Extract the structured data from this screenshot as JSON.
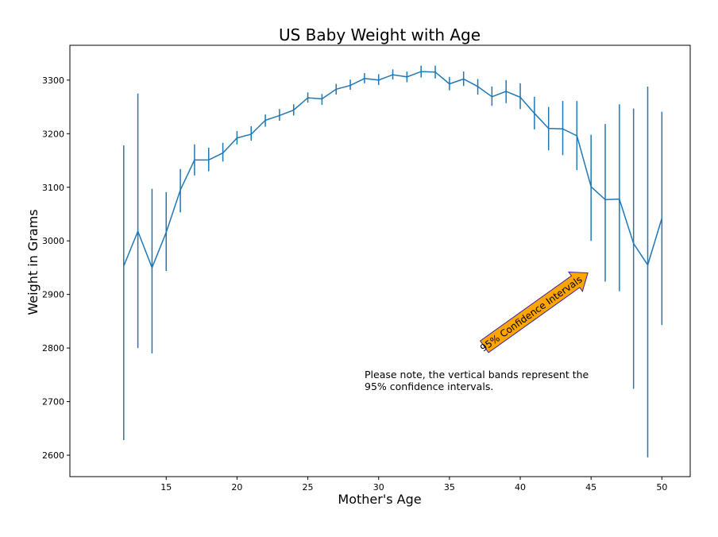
{
  "chart_data": {
    "type": "line",
    "title": "US Baby Weight with Age",
    "xlabel": "Mother's Age",
    "ylabel": "Weight in Grams",
    "xlim": [
      8.2,
      52
    ],
    "ylim": [
      2560,
      3365
    ],
    "xticks": [
      15,
      20,
      25,
      30,
      35,
      40,
      45,
      50
    ],
    "yticks": [
      2600,
      2700,
      2800,
      2900,
      3000,
      3100,
      3200,
      3300
    ],
    "grid": false,
    "color": "#1f77b4",
    "series": [
      {
        "x": [
          12,
          13,
          14,
          15,
          16,
          17,
          18,
          19,
          20,
          21,
          22,
          23,
          24,
          25,
          26,
          27,
          28,
          29,
          30,
          31,
          32,
          33,
          34,
          35,
          36,
          37,
          38,
          39,
          40,
          41,
          42,
          43,
          44,
          45,
          46,
          47,
          48,
          49,
          50
        ],
        "y": [
          2953,
          3018,
          2950,
          3016,
          3095,
          3151,
          3151,
          3164,
          3192,
          3199,
          3225,
          3234,
          3244,
          3267,
          3265,
          3283,
          3290,
          3303,
          3300,
          3310,
          3306,
          3316,
          3315,
          3293,
          3302,
          3288,
          3269,
          3279,
          3268,
          3238,
          3210,
          3209,
          3196,
          3101,
          3077,
          3078,
          2995,
          2955,
          3042
        ],
        "lower": [
          2628,
          2800,
          2790,
          2944,
          3053,
          3122,
          3130,
          3148,
          3180,
          3187,
          3213,
          3224,
          3234,
          3258,
          3254,
          3273,
          3282,
          3294,
          3291,
          3301,
          3296,
          3305,
          3303,
          3281,
          3289,
          3273,
          3252,
          3257,
          3246,
          3208,
          3169,
          3160,
          3132,
          3000,
          2924,
          2906,
          2724,
          2596,
          2843
        ],
        "upper": [
          3178,
          3275,
          3097,
          3091,
          3134,
          3180,
          3174,
          3183,
          3205,
          3214,
          3236,
          3246,
          3255,
          3277,
          3274,
          3293,
          3301,
          3313,
          3311,
          3320,
          3316,
          3327,
          3327,
          3306,
          3316,
          3302,
          3288,
          3300,
          3294,
          3269,
          3250,
          3261,
          3261,
          3198,
          3218,
          3255,
          3247,
          3288,
          3241
        ]
      }
    ],
    "annotations": {
      "arrow_label": "95% Confidence Intervals",
      "arrow_color": "#ffa500",
      "arrow_edge_color": "#3b1f9e",
      "note": [
        "Please note, the vertical bands represent the",
        "95% confidence intervals."
      ]
    }
  }
}
